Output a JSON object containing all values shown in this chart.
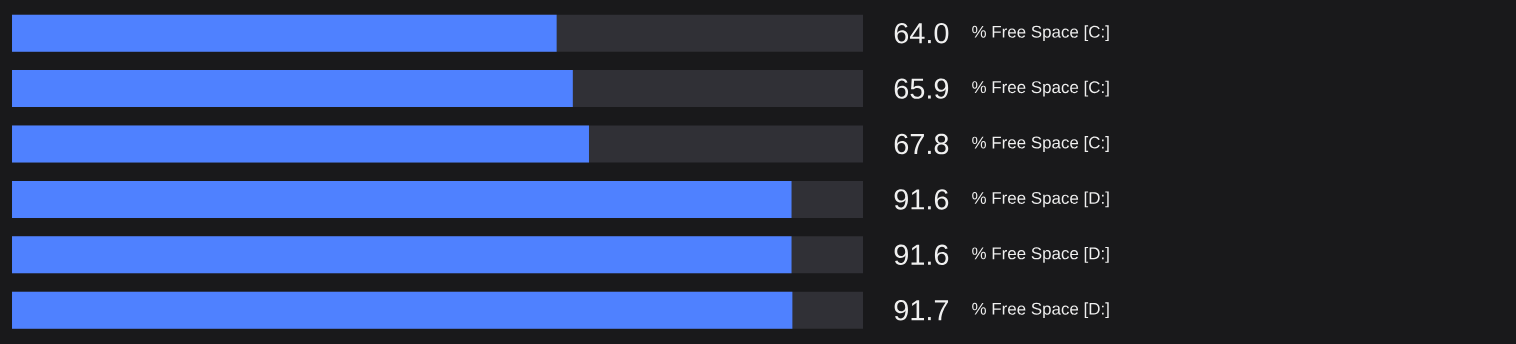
{
  "chart_data": {
    "type": "bar",
    "orientation": "horizontal",
    "categories": [
      "% Free Space [C:]",
      "% Free Space [C:]",
      "% Free Space [C:]",
      "% Free Space [D:]",
      "% Free Space [D:]",
      "% Free Space [D:]"
    ],
    "values": [
      64.0,
      65.9,
      67.8,
      91.6,
      91.6,
      91.7
    ],
    "value_labels": [
      "64.0",
      "65.9",
      "67.8",
      "91.6",
      "91.6",
      "91.7"
    ],
    "color": "#4f81ff",
    "xlim": [
      0,
      100
    ],
    "tick_labels": "y"
  }
}
